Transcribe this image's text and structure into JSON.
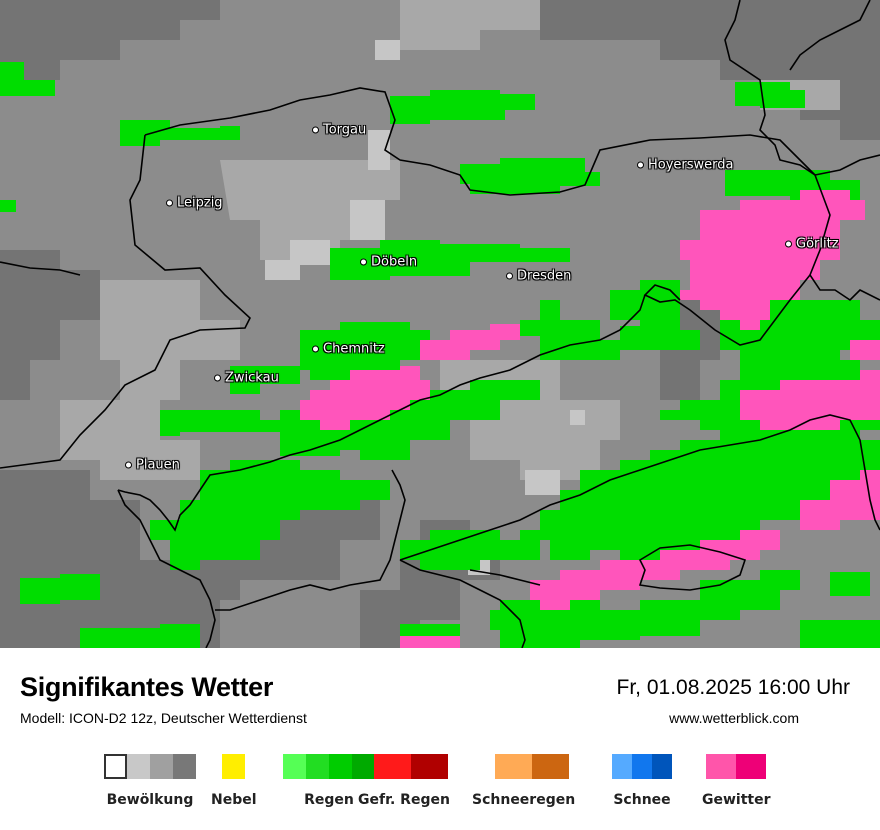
{
  "map": {
    "cities": [
      {
        "name": "Torgau",
        "icon": "city-dot-icon"
      },
      {
        "name": "Leipzig",
        "icon": "city-dot-icon"
      },
      {
        "name": "Hoyerswerda",
        "icon": "city-dot-icon"
      },
      {
        "name": "Döbeln",
        "icon": "city-dot-icon"
      },
      {
        "name": "Dresden",
        "icon": "city-dot-icon"
      },
      {
        "name": "Görlitz",
        "icon": "city-dot-icon"
      },
      {
        "name": "Chemnitz",
        "icon": "city-dot-icon"
      },
      {
        "name": "Zwickau",
        "icon": "city-dot-icon"
      },
      {
        "name": "Plauen",
        "icon": "city-dot-icon"
      }
    ]
  },
  "footer": {
    "title": "Signifikantes Wetter",
    "model": "Modell: ICON-D2 12z, Deutscher Wetterdienst",
    "datetime": "Fr, 01.08.2025 16:00 Uhr",
    "site": "www.wetterblick.com"
  },
  "legend": [
    {
      "label": "Bewölkung",
      "colors": [
        "#ffffff",
        "#c8c8c8",
        "#a0a0a0",
        "#787878"
      ]
    },
    {
      "label": "Nebel",
      "colors": [
        "#ffee00"
      ]
    },
    {
      "label": "Regen",
      "colors": [
        "#55ff55",
        "#22dd22",
        "#00cc00",
        "#00aa00"
      ]
    },
    {
      "label": "Gefr. Regen",
      "colors": [
        "#ff1a1a",
        "#b00000"
      ]
    },
    {
      "label": "Schneeregen",
      "colors": [
        "#ffaa55",
        "#cc6611"
      ]
    },
    {
      "label": "Schnee",
      "colors": [
        "#55aaff",
        "#1177ee",
        "#0055bb"
      ]
    },
    {
      "label": "Gewitter",
      "colors": [
        "#ff55aa",
        "#ee0077"
      ]
    }
  ],
  "colors": {
    "cloud_base": "#8c8c8c",
    "cloud_light": "#a6a6a6",
    "cloud_lighter": "#c4c4c4",
    "cloud_dark": "#737373",
    "rain": "#00dd00",
    "thunderstorm": "#ff55bb",
    "border": "#000000"
  }
}
